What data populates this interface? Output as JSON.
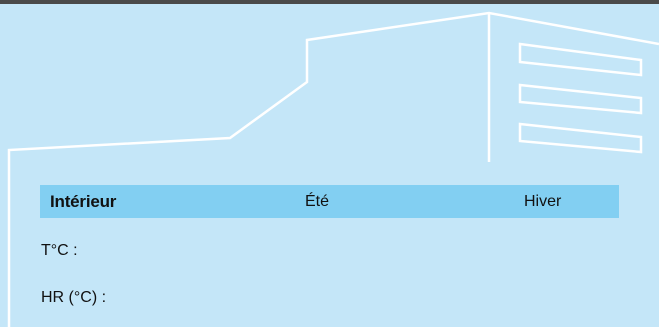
{
  "colors": {
    "background": "#c4e6f8",
    "header_bar": "#82cff2",
    "outline": "#ffffff",
    "top_border": "#4a4a4a"
  },
  "icons": [
    "building-outline-icon",
    "vent-grille-icon"
  ],
  "table": {
    "headers": {
      "interieur": "Intérieur",
      "ete": "Été",
      "hiver": "Hiver"
    },
    "rows": [
      {
        "label": "T°C :"
      },
      {
        "label": "HR (°C) :"
      }
    ]
  }
}
